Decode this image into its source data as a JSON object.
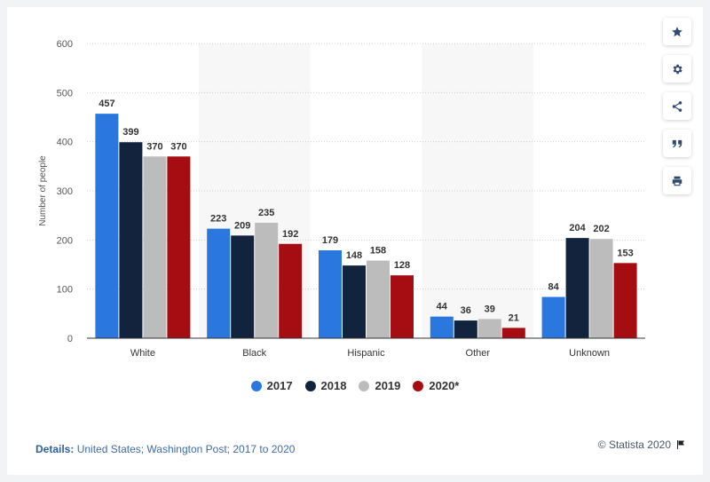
{
  "chart_data": {
    "type": "bar",
    "categories": [
      "White",
      "Black",
      "Hispanic",
      "Other",
      "Unknown"
    ],
    "series": [
      {
        "name": "2017",
        "color": "#2a77e0",
        "values": [
          457,
          223,
          179,
          44,
          84
        ]
      },
      {
        "name": "2018",
        "color": "#12243d",
        "values": [
          399,
          209,
          148,
          36,
          204
        ]
      },
      {
        "name": "2019",
        "color": "#bcbcbc",
        "values": [
          370,
          235,
          158,
          39,
          202
        ]
      },
      {
        "name": "2020*",
        "color": "#a50d12",
        "values": [
          370,
          192,
          128,
          21,
          153
        ]
      }
    ],
    "ylabel": "Number of people",
    "xlabel": "",
    "ylim": [
      0,
      600
    ],
    "yticks": [
      0,
      100,
      200,
      300,
      400,
      500,
      600
    ],
    "grid": true,
    "legend_position": "bottom-center",
    "data_labels": true
  },
  "footer": {
    "details_label": "Details:",
    "details_text": "United States; Washington Post; 2017 to 2020",
    "credit": "© Statista 2020"
  },
  "toolbar": {
    "icons": [
      "star-icon",
      "gear-icon",
      "share-icon",
      "quote-icon",
      "print-icon"
    ]
  }
}
